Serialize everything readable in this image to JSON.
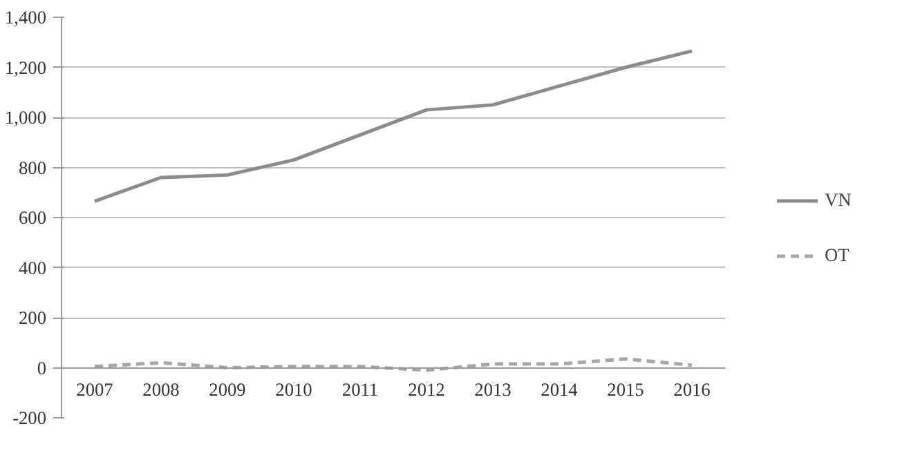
{
  "chart_data": {
    "type": "line",
    "categories": [
      "2007",
      "2008",
      "2009",
      "2010",
      "2011",
      "2012",
      "2013",
      "2014",
      "2015",
      "2016"
    ],
    "series": [
      {
        "name": "VN",
        "color": "#8c8c8c",
        "line_style": "solid",
        "values": [
          665,
          760,
          770,
          830,
          930,
          1030,
          1050,
          1125,
          1200,
          1265
        ]
      },
      {
        "name": "OT",
        "color": "#a6a6a6",
        "line_style": "dashed",
        "values": [
          5,
          20,
          0,
          5,
          5,
          -10,
          15,
          15,
          35,
          10
        ]
      }
    ],
    "ylim": [
      -200,
      1400
    ],
    "yticks": [
      {
        "value": -200,
        "label": "-200"
      },
      {
        "value": 0,
        "label": "0"
      },
      {
        "value": 200,
        "label": "200"
      },
      {
        "value": 400,
        "label": "400"
      },
      {
        "value": 600,
        "label": "600"
      },
      {
        "value": 800,
        "label": "800"
      },
      {
        "value": 1000,
        "label": "1,000"
      },
      {
        "value": 1200,
        "label": "1,200"
      },
      {
        "value": 1400,
        "label": "1,400"
      }
    ],
    "grid": "y",
    "legend": "right",
    "marker": "none"
  }
}
